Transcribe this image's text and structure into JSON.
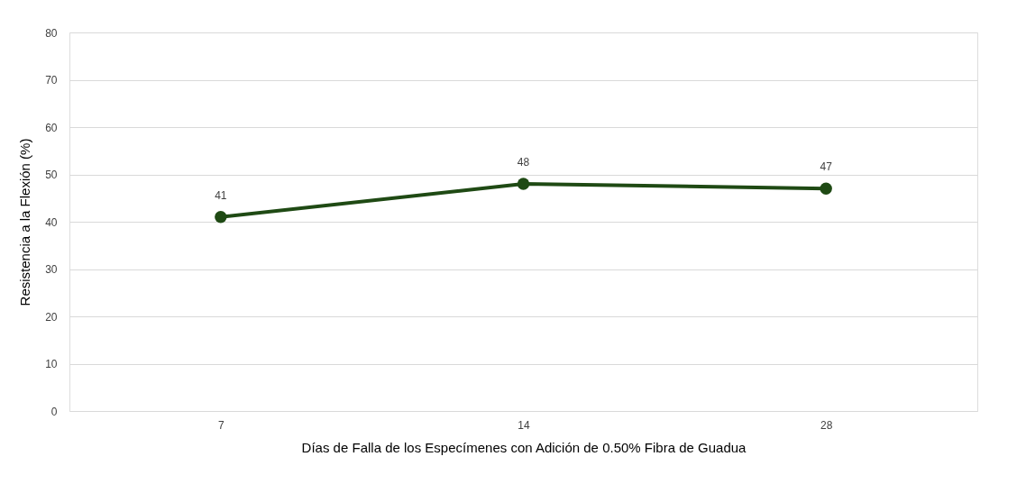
{
  "chart_data": {
    "type": "line",
    "xlabel": "Días de Falla de los Especímenes con Adición de 0.50% Fibra de Guadua",
    "ylabel": "Resistencia a la Flexión (%)",
    "categories": [
      "7",
      "14",
      "28"
    ],
    "series": [
      {
        "color": "#1f4a14",
        "values": [
          41,
          48,
          47
        ]
      }
    ],
    "ylim": [
      0,
      80
    ],
    "yticks": [
      0,
      10,
      20,
      30,
      40,
      50,
      60,
      70,
      80
    ],
    "grid": "y",
    "marker": "circle",
    "line_style": "solid",
    "data_labels": true
  }
}
